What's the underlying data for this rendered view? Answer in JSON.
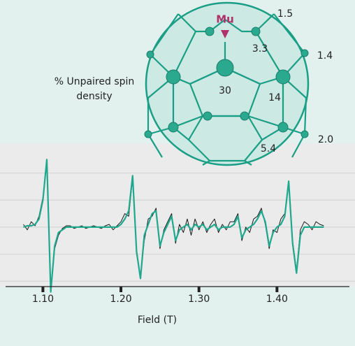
{
  "chart_data": {
    "type": "line",
    "xlabel": "Field (T)",
    "x": [
      1.075,
      1.08,
      1.085,
      1.09,
      1.095,
      1.1,
      1.105,
      1.11,
      1.115,
      1.12,
      1.125,
      1.13,
      1.135,
      1.14,
      1.145,
      1.15,
      1.155,
      1.16,
      1.165,
      1.17,
      1.175,
      1.18,
      1.185,
      1.19,
      1.195,
      1.2,
      1.205,
      1.21,
      1.215,
      1.22,
      1.225,
      1.23,
      1.235,
      1.24,
      1.245,
      1.25,
      1.255,
      1.26,
      1.265,
      1.27,
      1.275,
      1.28,
      1.285,
      1.29,
      1.295,
      1.3,
      1.305,
      1.31,
      1.315,
      1.32,
      1.325,
      1.33,
      1.335,
      1.34,
      1.345,
      1.35,
      1.355,
      1.36,
      1.365,
      1.37,
      1.375,
      1.38,
      1.385,
      1.39,
      1.395,
      1.4,
      1.405,
      1.41,
      1.415,
      1.42,
      1.425,
      1.43,
      1.435,
      1.44,
      1.445,
      1.45,
      1.455,
      1.46
    ],
    "series": [
      {
        "color": "#1a1a1a",
        "values": [
          0.1,
          -0.1,
          0.2,
          0.05,
          0.4,
          1.1,
          2.4,
          -2.3,
          -0.8,
          -0.3,
          -0.05,
          0.05,
          0.05,
          -0.05,
          0,
          0.05,
          -0.05,
          0,
          0.05,
          0,
          -0.05,
          0.05,
          0.1,
          -0.1,
          0.05,
          0.2,
          0.5,
          0.4,
          1.8,
          -1.0,
          -1.8,
          -0.5,
          0.3,
          0.4,
          0.7,
          -0.8,
          -0.1,
          0.2,
          0.5,
          -0.6,
          0.1,
          -0.2,
          0.3,
          -0.3,
          0.3,
          -0.1,
          0.2,
          -0.2,
          0.1,
          0.3,
          -0.2,
          0.1,
          -0.1,
          0.2,
          0.2,
          0.5,
          -0.5,
          0,
          -0.2,
          0.3,
          0.4,
          0.7,
          0.1,
          -0.8,
          -0.1,
          -0.2,
          0.3,
          0.5,
          1.6,
          -0.5,
          -1.6,
          -0.1,
          0.2,
          0.1,
          -0.1,
          0.2,
          0.1,
          0.05
        ]
      },
      {
        "color": "#1fa88e",
        "values": [
          0,
          0.05,
          0.05,
          0.1,
          0.3,
          1.0,
          2.5,
          -2.4,
          -0.7,
          -0.2,
          -0.1,
          0,
          0,
          0,
          0,
          0,
          0,
          0,
          0,
          0,
          0,
          0,
          0,
          0,
          0,
          0.1,
          0.3,
          0.6,
          1.9,
          -0.9,
          -1.9,
          -0.3,
          0.1,
          0.5,
          0.6,
          -0.7,
          -0.2,
          0.1,
          0.4,
          -0.5,
          -0.1,
          0,
          0.1,
          -0.1,
          0.1,
          0,
          0.1,
          -0.1,
          0,
          0.1,
          -0.1,
          0,
          0,
          0,
          0.1,
          0.4,
          -0.4,
          -0.1,
          0,
          0.1,
          0.3,
          0.6,
          0.2,
          -0.7,
          -0.2,
          0,
          0.1,
          0.4,
          1.7,
          -0.6,
          -1.7,
          -0.3,
          0,
          0,
          0,
          0,
          0,
          0
        ]
      }
    ],
    "xlim": [
      1.045,
      1.5
    ],
    "xticks": [
      {
        "value": 1.1,
        "label": "1.10"
      },
      {
        "value": 1.2,
        "label": "1.20"
      },
      {
        "value": 1.3,
        "label": "1.30"
      },
      {
        "value": 1.4,
        "label": "1.40"
      }
    ],
    "ylim": [
      -2.2,
      3.1
    ],
    "ygrid": [
      -2,
      -1,
      0,
      1,
      2
    ]
  },
  "diagram": {
    "mu_label": "Mu",
    "caption": "% Unpaired spin density",
    "spin_labels": [
      "1.5",
      "3.3",
      "1.4",
      "30",
      "14",
      "2.0",
      "5.4"
    ]
  }
}
